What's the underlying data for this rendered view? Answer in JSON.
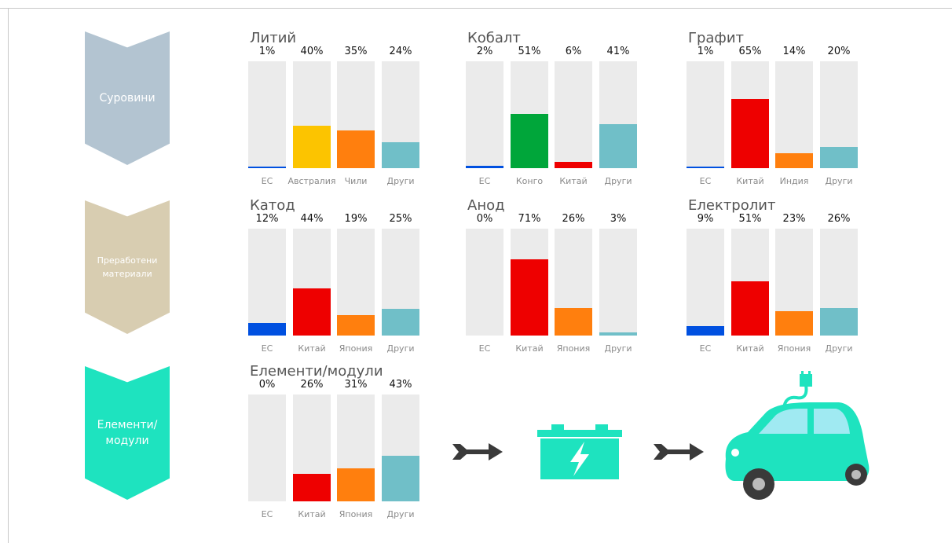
{
  "stages": [
    {
      "label": "Суровини",
      "color": "#b3c4d1"
    },
    {
      "label": "Преработени\nматериали",
      "color": "#d8cdb1"
    },
    {
      "label": "Елементи/\nмодули",
      "color": "#1ee3bf"
    }
  ],
  "colors": {
    "track": "#ebebeb",
    "eu": "#0050e0",
    "china": "#ee0000",
    "australia": "#fcc400",
    "chile_japan_india": "#ff7f0e",
    "others": "#70bfc8",
    "congo": "#00a63a",
    "accent": "#1ee3bf",
    "dark": "#3a3a3a"
  },
  "chart_data": [
    {
      "type": "bar",
      "title": "Литий",
      "categories": [
        "ЕС",
        "Австралия",
        "Чили",
        "Други"
      ],
      "values": [
        1,
        40,
        35,
        24
      ],
      "value_labels": [
        "1%",
        "40%",
        "35%",
        "24%"
      ],
      "colors": [
        "#0050e0",
        "#fcc400",
        "#ff7f0e",
        "#70bfc8"
      ],
      "ylim": [
        0,
        100
      ]
    },
    {
      "type": "bar",
      "title": "Кобалт",
      "categories": [
        "ЕС",
        "Конго",
        "Китай",
        "Други"
      ],
      "values": [
        2,
        51,
        6,
        41
      ],
      "value_labels": [
        "2%",
        "51%",
        "6%",
        "41%"
      ],
      "colors": [
        "#0050e0",
        "#00a63a",
        "#ee0000",
        "#70bfc8"
      ],
      "ylim": [
        0,
        100
      ]
    },
    {
      "type": "bar",
      "title": "Графит",
      "categories": [
        "ЕС",
        "Китай",
        "Индия",
        "Други"
      ],
      "values": [
        1,
        65,
        14,
        20
      ],
      "value_labels": [
        "1%",
        "65%",
        "14%",
        "20%"
      ],
      "colors": [
        "#0050e0",
        "#ee0000",
        "#ff7f0e",
        "#70bfc8"
      ],
      "ylim": [
        0,
        100
      ]
    },
    {
      "type": "bar",
      "title": "Катод",
      "categories": [
        "ЕС",
        "Китай",
        "Япония",
        "Други"
      ],
      "values": [
        12,
        44,
        19,
        25
      ],
      "value_labels": [
        "12%",
        "44%",
        "19%",
        "25%"
      ],
      "colors": [
        "#0050e0",
        "#ee0000",
        "#ff7f0e",
        "#70bfc8"
      ],
      "ylim": [
        0,
        100
      ]
    },
    {
      "type": "bar",
      "title": "Анод",
      "categories": [
        "ЕС",
        "Китай",
        "Япония",
        "Други"
      ],
      "values": [
        0,
        71,
        26,
        3
      ],
      "value_labels": [
        "0%",
        "71%",
        "26%",
        "3%"
      ],
      "colors": [
        "#0050e0",
        "#ee0000",
        "#ff7f0e",
        "#70bfc8"
      ],
      "ylim": [
        0,
        100
      ]
    },
    {
      "type": "bar",
      "title": "Електролит",
      "categories": [
        "ЕС",
        "Китай",
        "Япония",
        "Други"
      ],
      "values": [
        9,
        51,
        23,
        26
      ],
      "value_labels": [
        "9%",
        "51%",
        "23%",
        "26%"
      ],
      "colors": [
        "#0050e0",
        "#ee0000",
        "#ff7f0e",
        "#70bfc8"
      ],
      "ylim": [
        0,
        100
      ]
    },
    {
      "type": "bar",
      "title": "Елементи/модули",
      "categories": [
        "ЕС",
        "Китай",
        "Япония",
        "Други"
      ],
      "values": [
        0,
        26,
        31,
        43
      ],
      "value_labels": [
        "0%",
        "26%",
        "31%",
        "43%"
      ],
      "colors": [
        "#0050e0",
        "#ee0000",
        "#ff7f0e",
        "#70bfc8"
      ],
      "ylim": [
        0,
        100
      ]
    }
  ],
  "icons": [
    "arrow-right-icon",
    "battery-icon",
    "arrow-right-icon",
    "electric-car-icon"
  ]
}
